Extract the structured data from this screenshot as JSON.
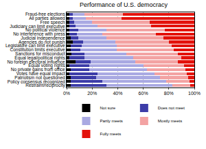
{
  "chart_data": {
    "type": "bar",
    "title": "Performance of U.S. democracy",
    "orientation": "horizontal",
    "stacked": true,
    "grid": true,
    "legend": "bottom",
    "categories": [
      "Fraud-free elections",
      "All parties allowed",
      "Free speech",
      "Judiciary can limit executive",
      "No political violence",
      "No interference with press",
      "Judicial independence",
      "Agencies do not punish",
      "Legislature can limit executive",
      "Constitution limits executive",
      "Sanctions for misconduct",
      "Equal legal/political rights",
      "No foreign electoral influence",
      "Equal voting rights",
      "No private gains from office",
      "Votes have equal impact",
      "Patriotism not questioned",
      "Policy consensus recognized",
      "Restraint/reciprocity"
    ],
    "series": [
      {
        "name": "Not sure",
        "color": "#000000",
        "values": [
          2,
          2,
          2,
          2,
          2,
          2,
          3,
          5,
          3,
          3,
          4,
          2,
          7,
          2,
          3,
          2,
          3,
          3,
          3
        ]
      },
      {
        "name": "Does not meet",
        "color": "#3c3ca8",
        "values": [
          3,
          3,
          4,
          5,
          7,
          6,
          6,
          8,
          9,
          8,
          10,
          12,
          12,
          16,
          15,
          22,
          20,
          25,
          28
        ]
      },
      {
        "name": "Partly meets",
        "color": "#a9a9e2",
        "values": [
          9,
          10,
          14,
          17,
          22,
          20,
          22,
          25,
          27,
          28,
          33,
          38,
          35,
          42,
          45,
          45,
          50,
          50,
          52
        ]
      },
      {
        "name": "Mostly meets",
        "color": "#f3a3a3",
        "values": [
          30,
          28,
          45,
          42,
          46,
          42,
          45,
          42,
          43,
          45,
          40,
          38,
          33,
          32,
          30,
          25,
          22,
          18,
          14
        ]
      },
      {
        "name": "Fully meets",
        "color": "#e3120b",
        "values": [
          56,
          57,
          35,
          34,
          23,
          30,
          24,
          20,
          18,
          16,
          13,
          10,
          13,
          8,
          7,
          6,
          5,
          4,
          3
        ]
      }
    ],
    "xlim": [
      0,
      100
    ],
    "xticks": [
      {
        "value": 0,
        "label": "0%"
      },
      {
        "value": 20,
        "label": "20%"
      },
      {
        "value": 40,
        "label": "40%"
      },
      {
        "value": 60,
        "label": "60%"
      },
      {
        "value": 80,
        "label": "80%"
      },
      {
        "value": 100,
        "label": "100%"
      }
    ]
  }
}
